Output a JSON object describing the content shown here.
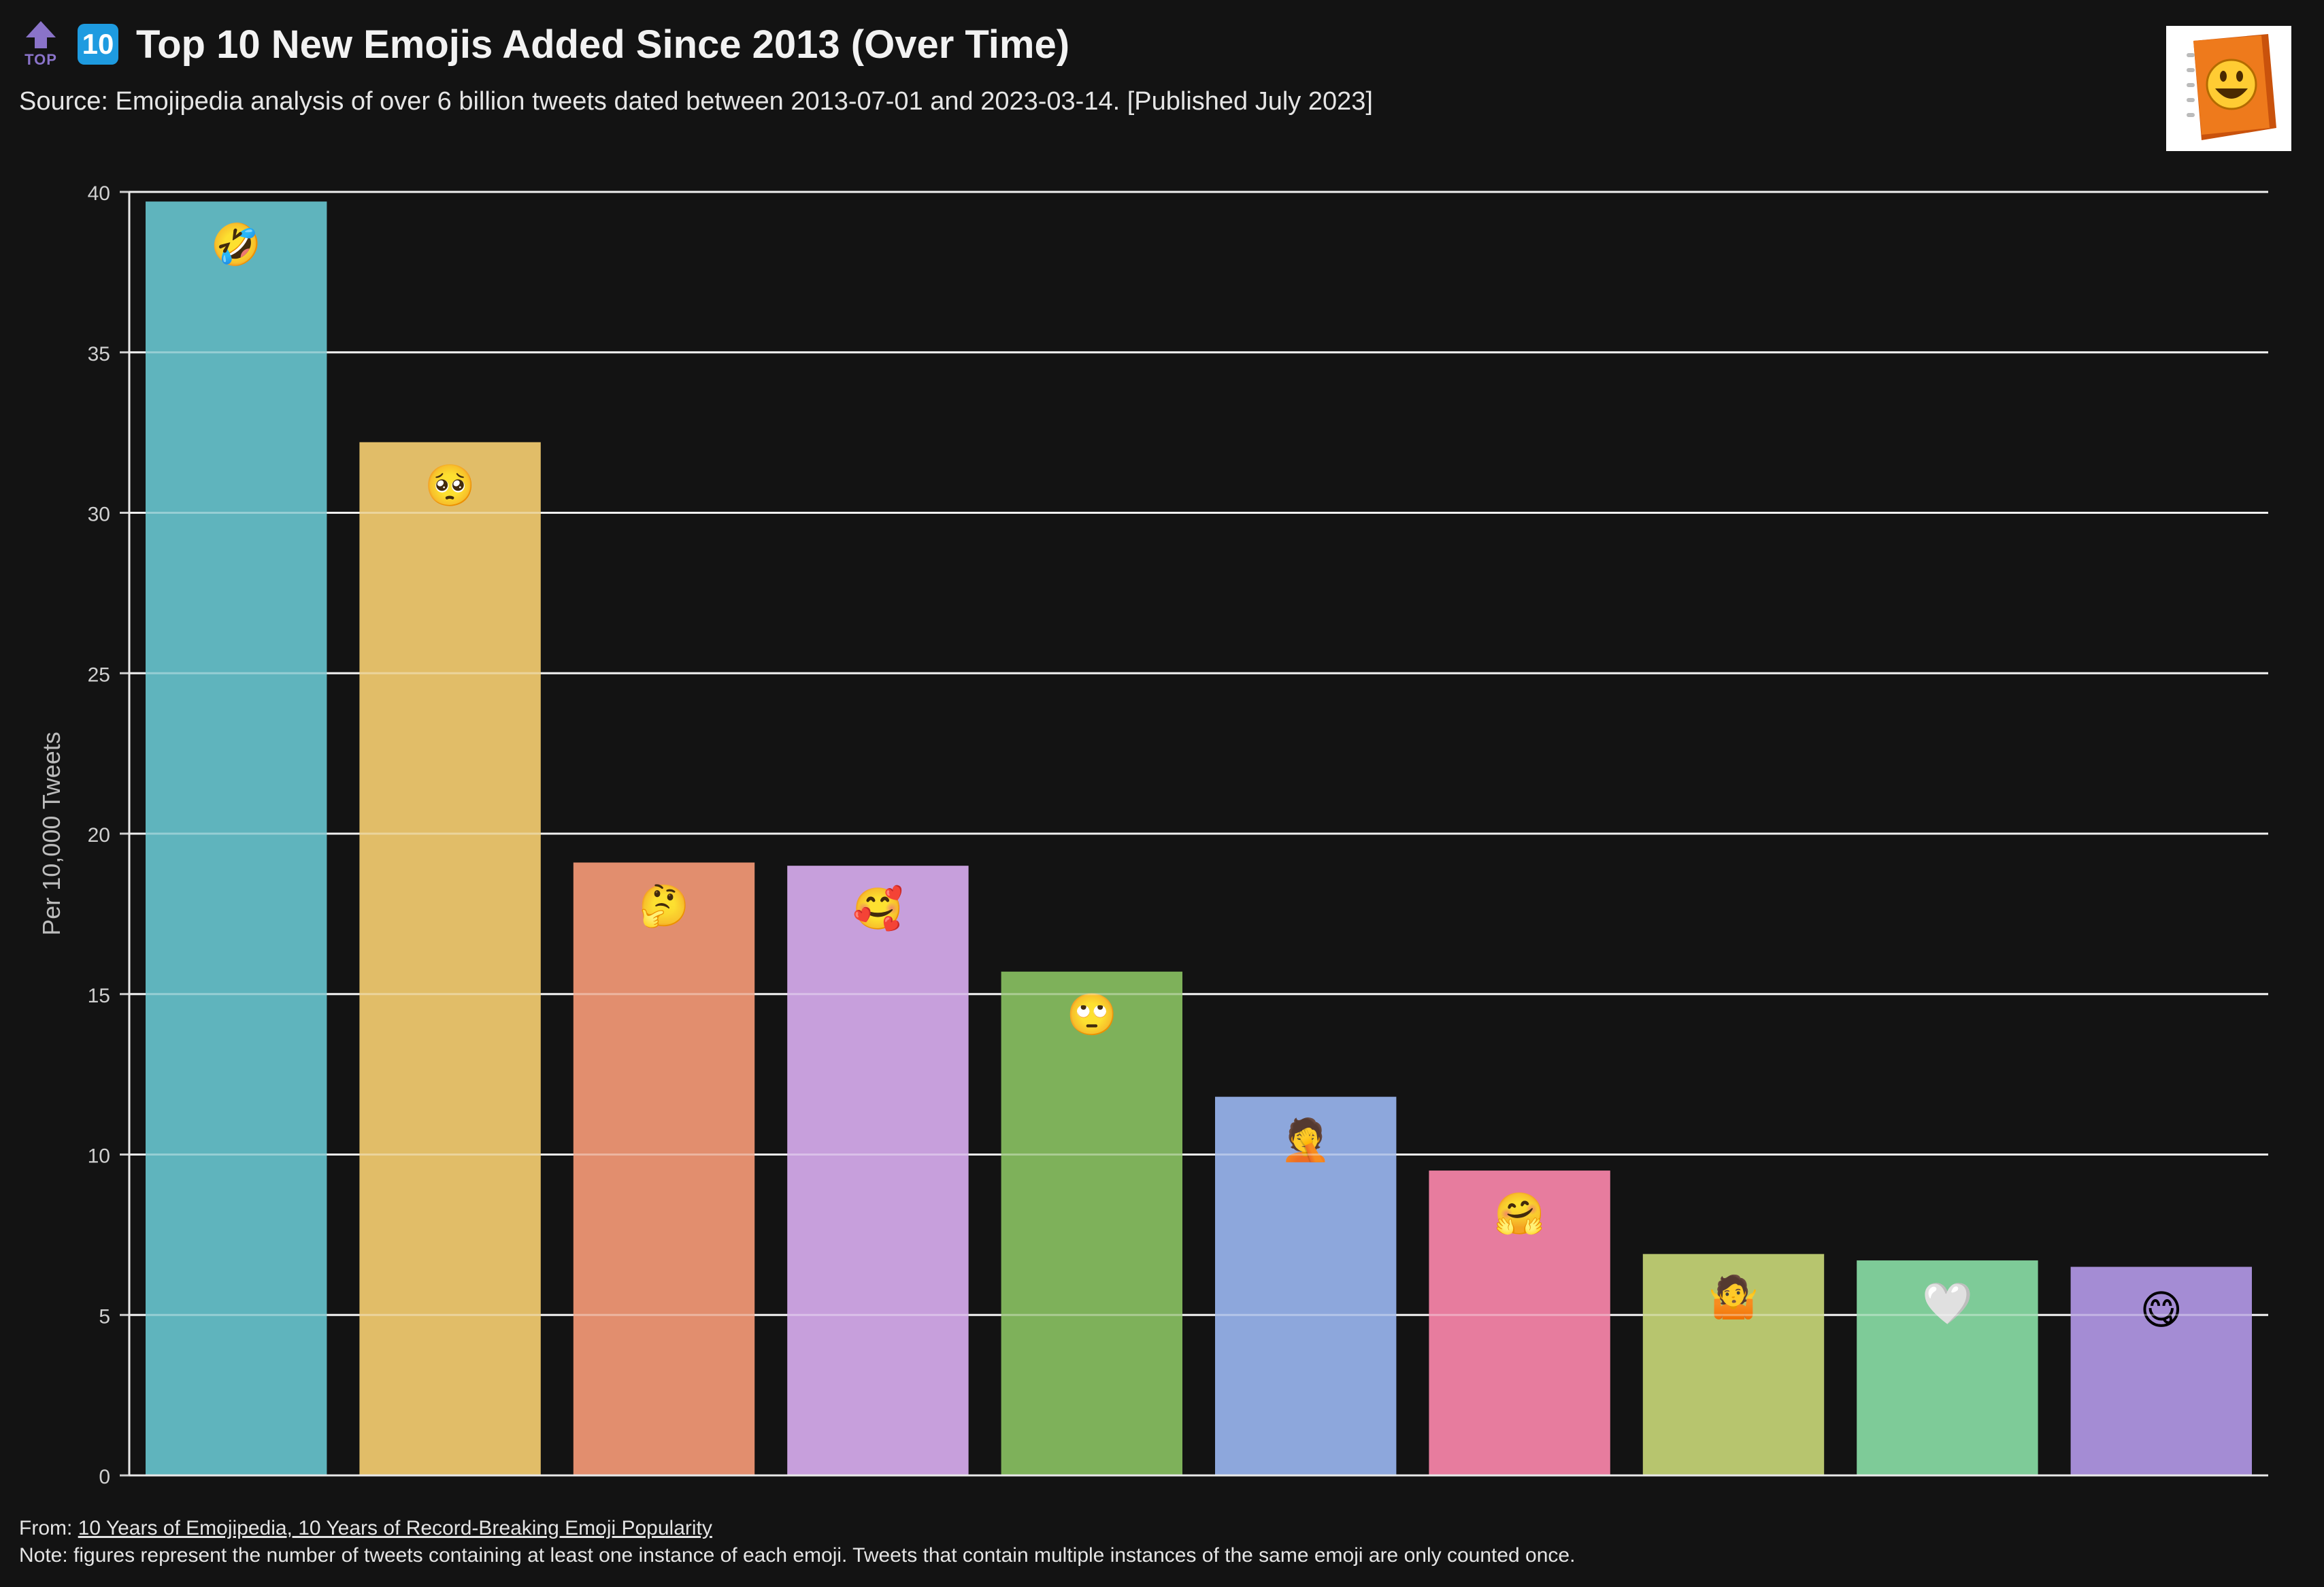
{
  "header": {
    "top_icon_label": "TOP",
    "ten_icon_label": "10",
    "title": "Top 10 New Emojis Added Since 2013 (Over Time)",
    "subtitle": "Source: Emojipedia analysis of over 6 billion tweets dated between 2013-07-01 and 2023-03-14. [Published July 2023]"
  },
  "footer": {
    "from_prefix": "From: ",
    "from_link": "10 Years of Emojipedia, 10 Years of Record-Breaking Emoji Popularity",
    "note": "Note: figures represent the number of tweets containing at least one instance of each emoji. Tweets that contain multiple instances of the same emoji are only counted once."
  },
  "chart_data": {
    "type": "bar",
    "title": "Top 10 New Emojis Added Since 2013 (Over Time)",
    "ylabel": "Per 10,000 Tweets",
    "xlabel": "",
    "ylim": [
      0,
      40
    ],
    "yticks": [
      0,
      5,
      10,
      15,
      20,
      25,
      30,
      35,
      40
    ],
    "grid": true,
    "categories": [
      "🤣",
      "🥺",
      "🤔",
      "🥰",
      "🙄",
      "🤦",
      "🤗",
      "🤷",
      "🤍",
      "😋"
    ],
    "icons": [
      "rofl-emoji-icon",
      "pleading-face-emoji-icon",
      "thinking-face-emoji-icon",
      "smiling-face-with-hearts-emoji-icon",
      "rolling-eyes-emoji-icon",
      "facepalm-emoji-icon",
      "hugging-face-emoji-icon",
      "shrug-emoji-icon",
      "white-heart-emoji-icon",
      "yum-face-emoji-icon"
    ],
    "values": [
      39.7,
      32.2,
      19.1,
      19.0,
      15.7,
      11.8,
      9.5,
      6.9,
      6.7,
      6.5
    ],
    "colors": [
      "#5fb4bd",
      "#e1bd68",
      "#e28e6e",
      "#c79fdc",
      "#7eb15a",
      "#8da7dc",
      "#e77c9e",
      "#b7c56e",
      "#7ecb98",
      "#a48cd4"
    ]
  }
}
